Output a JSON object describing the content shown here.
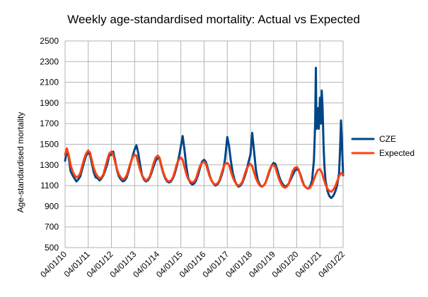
{
  "chart_data": {
    "type": "line",
    "title": "Weekly age-standardised mortality: Actual vs Expected",
    "xlabel": "",
    "ylabel": "Age-standardised mortality",
    "ylim": [
      500,
      2500
    ],
    "yticks": [
      500,
      700,
      900,
      1100,
      1300,
      1500,
      1700,
      1900,
      2100,
      2300,
      2500
    ],
    "xlim": [
      "2010-01-04",
      "2022-01-04"
    ],
    "xticks": [
      "04/01/10",
      "04/01/11",
      "04/01/12",
      "04/01/13",
      "04/01/14",
      "04/01/15",
      "04/01/16",
      "04/01/17",
      "04/01/18",
      "04/01/19",
      "04/01/20",
      "04/01/21",
      "04/01/22"
    ],
    "grid": "horizontal and vertical",
    "legend_position": "right",
    "series": [
      {
        "name": "CZE",
        "color": "#004586",
        "x": [
          "2010-01-04",
          "2010-02-01",
          "2010-03-01",
          "2010-04-01",
          "2010-05-01",
          "2010-06-01",
          "2010-07-01",
          "2010-08-01",
          "2010-09-01",
          "2010-10-01",
          "2010-11-01",
          "2010-12-01",
          "2011-01-04",
          "2011-02-01",
          "2011-03-01",
          "2011-04-01",
          "2011-05-01",
          "2011-06-01",
          "2011-07-01",
          "2011-08-01",
          "2011-09-01",
          "2011-10-01",
          "2011-11-01",
          "2011-12-01",
          "2012-01-04",
          "2012-02-01",
          "2012-03-01",
          "2012-04-01",
          "2012-05-01",
          "2012-06-01",
          "2012-07-01",
          "2012-08-01",
          "2012-09-01",
          "2012-10-01",
          "2012-11-01",
          "2012-12-01",
          "2013-01-04",
          "2013-02-01",
          "2013-03-01",
          "2013-04-01",
          "2013-05-01",
          "2013-06-01",
          "2013-07-01",
          "2013-08-01",
          "2013-09-01",
          "2013-10-01",
          "2013-11-01",
          "2013-12-01",
          "2014-01-04",
          "2014-02-01",
          "2014-03-01",
          "2014-04-01",
          "2014-05-01",
          "2014-06-01",
          "2014-07-01",
          "2014-08-01",
          "2014-09-01",
          "2014-10-01",
          "2014-11-01",
          "2014-12-01",
          "2015-01-04",
          "2015-02-01",
          "2015-03-01",
          "2015-04-01",
          "2015-05-01",
          "2015-06-01",
          "2015-07-01",
          "2015-08-01",
          "2015-09-01",
          "2015-10-01",
          "2015-11-01",
          "2015-12-01",
          "2016-01-04",
          "2016-02-01",
          "2016-03-01",
          "2016-04-01",
          "2016-05-01",
          "2016-06-01",
          "2016-07-01",
          "2016-08-01",
          "2016-09-01",
          "2016-10-01",
          "2016-11-01",
          "2016-12-01",
          "2017-01-04",
          "2017-02-01",
          "2017-03-01",
          "2017-04-01",
          "2017-05-01",
          "2017-06-01",
          "2017-07-01",
          "2017-08-01",
          "2017-09-01",
          "2017-10-01",
          "2017-11-01",
          "2017-12-01",
          "2018-01-04",
          "2018-02-01",
          "2018-03-01",
          "2018-04-01",
          "2018-05-01",
          "2018-06-01",
          "2018-07-01",
          "2018-08-01",
          "2018-09-01",
          "2018-10-01",
          "2018-11-01",
          "2018-12-01",
          "2019-01-04",
          "2019-02-01",
          "2019-03-01",
          "2019-04-01",
          "2019-05-01",
          "2019-06-01",
          "2019-07-01",
          "2019-08-01",
          "2019-09-01",
          "2019-10-01",
          "2019-11-01",
          "2019-12-01",
          "2020-01-04",
          "2020-02-01",
          "2020-03-01",
          "2020-04-01",
          "2020-05-01",
          "2020-06-01",
          "2020-07-01",
          "2020-08-01",
          "2020-09-01",
          "2020-10-01",
          "2020-10-20",
          "2020-11-01",
          "2020-11-10",
          "2020-11-20",
          "2020-12-01",
          "2020-12-15",
          "2021-01-04",
          "2021-01-20",
          "2021-02-01",
          "2021-02-15",
          "2021-03-01",
          "2021-03-15",
          "2021-04-01",
          "2021-05-01",
          "2021-06-01",
          "2021-07-01",
          "2021-08-01",
          "2021-09-01",
          "2021-10-01",
          "2021-11-01",
          "2021-11-20",
          "2021-12-01",
          "2021-12-15",
          "2022-01-04"
        ],
        "values": [
          1340,
          1440,
          1380,
          1240,
          1200,
          1170,
          1140,
          1160,
          1190,
          1260,
          1330,
          1390,
          1420,
          1400,
          1320,
          1230,
          1180,
          1170,
          1150,
          1170,
          1200,
          1250,
          1310,
          1390,
          1400,
          1430,
          1350,
          1250,
          1190,
          1160,
          1140,
          1150,
          1180,
          1240,
          1310,
          1380,
          1450,
          1490,
          1420,
          1300,
          1200,
          1160,
          1140,
          1150,
          1180,
          1230,
          1290,
          1340,
          1370,
          1360,
          1290,
          1220,
          1170,
          1140,
          1130,
          1140,
          1170,
          1220,
          1290,
          1370,
          1480,
          1580,
          1450,
          1280,
          1170,
          1130,
          1110,
          1120,
          1150,
          1200,
          1270,
          1330,
          1350,
          1330,
          1270,
          1200,
          1150,
          1120,
          1100,
          1110,
          1140,
          1190,
          1250,
          1360,
          1570,
          1480,
          1340,
          1220,
          1150,
          1110,
          1090,
          1100,
          1130,
          1180,
          1240,
          1320,
          1400,
          1610,
          1440,
          1250,
          1150,
          1110,
          1090,
          1100,
          1130,
          1180,
          1240,
          1290,
          1320,
          1310,
          1260,
          1190,
          1140,
          1110,
          1090,
          1100,
          1120,
          1160,
          1200,
          1240,
          1260,
          1250,
          1210,
          1150,
          1100,
          1080,
          1070,
          1090,
          1150,
          1350,
          1700,
          2240,
          1650,
          1750,
          1850,
          1650,
          1950,
          1700,
          2020,
          1850,
          1500,
          1300,
          1150,
          1050,
          1000,
          980,
          1000,
          1040,
          1100,
          1220,
          1500,
          1730,
          1550,
          1200
        ]
      },
      {
        "name": "Expected",
        "color": "#ff420e",
        "x": [
          "2010-01-04",
          "2010-02-01",
          "2010-03-01",
          "2010-04-01",
          "2010-05-01",
          "2010-06-01",
          "2010-07-01",
          "2010-08-01",
          "2010-09-01",
          "2010-10-01",
          "2010-11-01",
          "2010-12-01",
          "2011-01-04",
          "2011-02-01",
          "2011-03-01",
          "2011-04-01",
          "2011-05-01",
          "2011-06-01",
          "2011-07-01",
          "2011-08-01",
          "2011-09-01",
          "2011-10-01",
          "2011-11-01",
          "2011-12-01",
          "2012-01-04",
          "2012-02-01",
          "2012-03-01",
          "2012-04-01",
          "2012-05-01",
          "2012-06-01",
          "2012-07-01",
          "2012-08-01",
          "2012-09-01",
          "2012-10-01",
          "2012-11-01",
          "2012-12-01",
          "2013-01-04",
          "2013-02-01",
          "2013-03-01",
          "2013-04-01",
          "2013-05-01",
          "2013-06-01",
          "2013-07-01",
          "2013-08-01",
          "2013-09-01",
          "2013-10-01",
          "2013-11-01",
          "2013-12-01",
          "2014-01-04",
          "2014-02-01",
          "2014-03-01",
          "2014-04-01",
          "2014-05-01",
          "2014-06-01",
          "2014-07-01",
          "2014-08-01",
          "2014-09-01",
          "2014-10-01",
          "2014-11-01",
          "2014-12-01",
          "2015-01-04",
          "2015-02-01",
          "2015-03-01",
          "2015-04-01",
          "2015-05-01",
          "2015-06-01",
          "2015-07-01",
          "2015-08-01",
          "2015-09-01",
          "2015-10-01",
          "2015-11-01",
          "2015-12-01",
          "2016-01-04",
          "2016-02-01",
          "2016-03-01",
          "2016-04-01",
          "2016-05-01",
          "2016-06-01",
          "2016-07-01",
          "2016-08-01",
          "2016-09-01",
          "2016-10-01",
          "2016-11-01",
          "2016-12-01",
          "2017-01-04",
          "2017-02-01",
          "2017-03-01",
          "2017-04-01",
          "2017-05-01",
          "2017-06-01",
          "2017-07-01",
          "2017-08-01",
          "2017-09-01",
          "2017-10-01",
          "2017-11-01",
          "2017-12-01",
          "2018-01-04",
          "2018-02-01",
          "2018-03-01",
          "2018-04-01",
          "2018-05-01",
          "2018-06-01",
          "2018-07-01",
          "2018-08-01",
          "2018-09-01",
          "2018-10-01",
          "2018-11-01",
          "2018-12-01",
          "2019-01-04",
          "2019-02-01",
          "2019-03-01",
          "2019-04-01",
          "2019-05-01",
          "2019-06-01",
          "2019-07-01",
          "2019-08-01",
          "2019-09-01",
          "2019-10-01",
          "2019-11-01",
          "2019-12-01",
          "2020-01-04",
          "2020-02-01",
          "2020-03-01",
          "2020-04-01",
          "2020-05-01",
          "2020-06-01",
          "2020-07-01",
          "2020-08-01",
          "2020-09-01",
          "2020-10-01",
          "2020-11-01",
          "2020-12-01",
          "2021-01-04",
          "2021-02-01",
          "2021-03-01",
          "2021-04-01",
          "2021-05-01",
          "2021-06-01",
          "2021-07-01",
          "2021-08-01",
          "2021-09-01",
          "2021-10-01",
          "2021-11-01",
          "2021-12-01",
          "2022-01-04"
        ],
        "values": [
          1400,
          1460,
          1400,
          1300,
          1240,
          1200,
          1180,
          1190,
          1220,
          1290,
          1360,
          1410,
          1440,
          1420,
          1350,
          1270,
          1220,
          1190,
          1170,
          1180,
          1210,
          1280,
          1350,
          1410,
          1430,
          1400,
          1330,
          1260,
          1210,
          1180,
          1160,
          1170,
          1200,
          1260,
          1320,
          1370,
          1400,
          1390,
          1320,
          1250,
          1200,
          1170,
          1150,
          1160,
          1190,
          1250,
          1320,
          1370,
          1390,
          1370,
          1300,
          1230,
          1180,
          1150,
          1140,
          1150,
          1180,
          1240,
          1310,
          1350,
          1370,
          1350,
          1280,
          1210,
          1160,
          1140,
          1130,
          1140,
          1170,
          1230,
          1290,
          1320,
          1330,
          1310,
          1250,
          1190,
          1150,
          1120,
          1110,
          1120,
          1150,
          1210,
          1270,
          1310,
          1320,
          1300,
          1240,
          1180,
          1140,
          1110,
          1100,
          1110,
          1140,
          1200,
          1260,
          1290,
          1310,
          1290,
          1230,
          1170,
          1130,
          1100,
          1090,
          1100,
          1130,
          1190,
          1250,
          1290,
          1300,
          1280,
          1220,
          1160,
          1120,
          1090,
          1080,
          1090,
          1120,
          1180,
          1240,
          1270,
          1280,
          1260,
          1200,
          1140,
          1100,
          1080,
          1070,
          1080,
          1110,
          1160,
          1210,
          1250,
          1260,
          1230,
          1170,
          1110,
          1070,
          1050,
          1040,
          1060,
          1090,
          1140,
          1190,
          1220,
          1210
        ]
      }
    ]
  }
}
